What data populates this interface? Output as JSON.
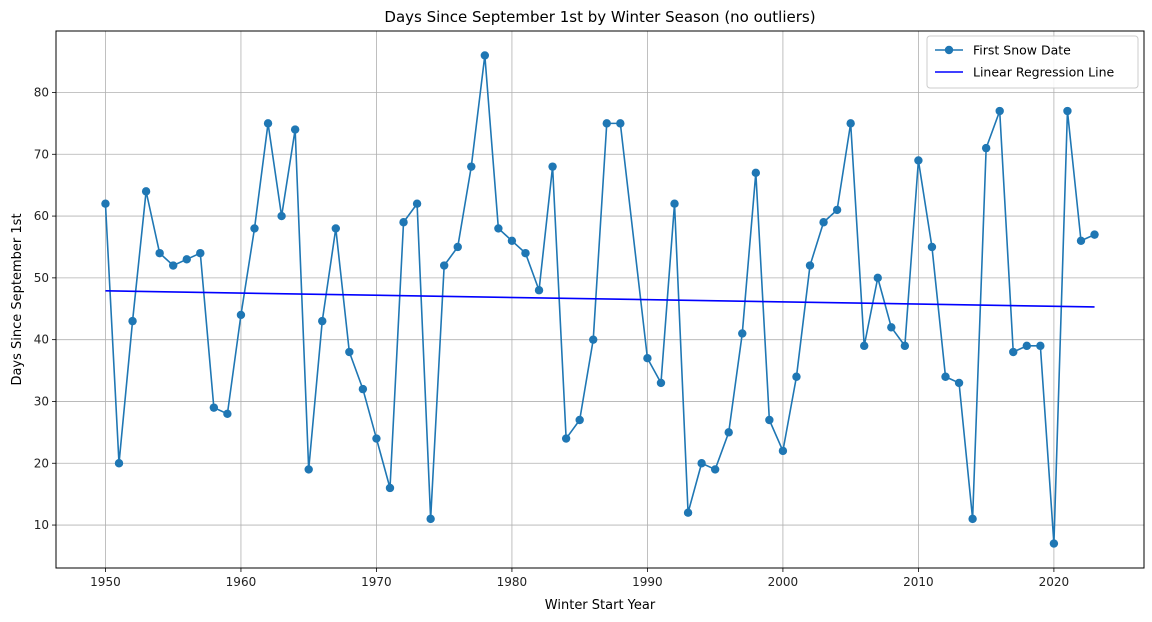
{
  "chart_data": {
    "type": "line",
    "title": "Days Since September 1st by Winter Season (no outliers)",
    "xlabel": "Winter Start Year",
    "ylabel": "Days Since September 1st",
    "xlim": [
      1946.35,
      2026.65
    ],
    "ylim": [
      3.05,
      89.95
    ],
    "xticks": [
      1950,
      1960,
      1970,
      1980,
      1990,
      2000,
      2010,
      2020
    ],
    "yticks": [
      10,
      20,
      30,
      40,
      50,
      60,
      70,
      80
    ],
    "grid": true,
    "legend_position": "top-right",
    "series": [
      {
        "name": "First Snow Date",
        "color": "#1f77b4",
        "marker": "circle",
        "x": [
          1950,
          1951,
          1952,
          1953,
          1954,
          1955,
          1956,
          1957,
          1958,
          1959,
          1960,
          1961,
          1962,
          1963,
          1964,
          1965,
          1966,
          1967,
          1968,
          1969,
          1970,
          1971,
          1972,
          1973,
          1974,
          1975,
          1976,
          1977,
          1978,
          1979,
          1980,
          1981,
          1982,
          1983,
          1984,
          1985,
          1986,
          1987,
          1988,
          1990,
          1991,
          1992,
          1993,
          1994,
          1995,
          1996,
          1997,
          1998,
          1999,
          2000,
          2001,
          2002,
          2003,
          2004,
          2005,
          2006,
          2007,
          2008,
          2009,
          2010,
          2011,
          2012,
          2013,
          2014,
          2015,
          2016,
          2017,
          2018,
          2019,
          2020,
          2021,
          2022,
          2023
        ],
        "y": [
          62,
          20,
          43,
          64,
          54,
          52,
          53,
          54,
          29,
          28,
          44,
          58,
          75,
          60,
          74,
          19,
          43,
          58,
          38,
          32,
          24,
          16,
          59,
          62,
          11,
          52,
          55,
          68,
          86,
          58,
          56,
          54,
          48,
          68,
          24,
          27,
          40,
          75,
          75,
          37,
          33,
          62,
          12,
          20,
          19,
          25,
          41,
          67,
          27,
          22,
          34,
          52,
          59,
          61,
          75,
          39,
          50,
          42,
          39,
          69,
          55,
          34,
          33,
          11,
          71,
          77,
          38,
          39,
          39,
          7,
          77,
          56,
          57
        ]
      },
      {
        "name": "Linear Regression Line",
        "color": "#0000ff",
        "marker": "none",
        "x": [
          1950,
          2023
        ],
        "y": [
          47.9,
          45.3
        ]
      }
    ]
  }
}
